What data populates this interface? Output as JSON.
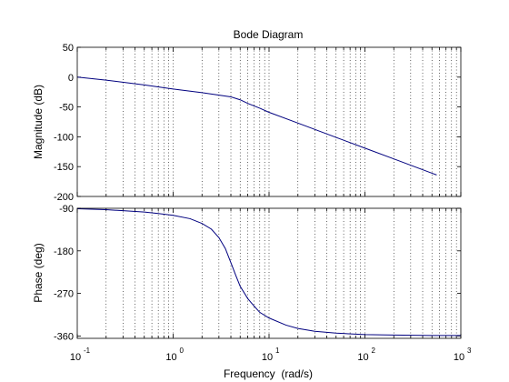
{
  "chart_data": [
    {
      "type": "line",
      "title": "Bode Diagram",
      "ylabel": "Magnitude (dB)",
      "xlabel": "",
      "xscale": "log",
      "xlim": [
        0.1,
        1000
      ],
      "ylim": [
        -200,
        50
      ],
      "yticks": [
        50,
        0,
        -50,
        -100,
        -150,
        -200
      ],
      "grid": "x-minor-dotted",
      "series": [
        {
          "x": [
            0.1,
            0.2,
            0.5,
            1,
            2,
            4,
            5,
            6,
            8,
            10,
            20,
            50,
            100,
            200,
            500,
            560
          ],
          "values": [
            0,
            -5,
            -13,
            -20,
            -26,
            -33,
            -38,
            -44,
            -52,
            -59,
            -77,
            -101,
            -119,
            -137,
            -161,
            -164
          ]
        }
      ]
    },
    {
      "type": "line",
      "title": "",
      "ylabel": "Phase (deg)",
      "xlabel": "Frequency  (rad/s)",
      "xscale": "log",
      "xlim": [
        0.1,
        1000
      ],
      "xticks": [
        "10",
        "10",
        "10",
        "10",
        "10"
      ],
      "xtick_exponents": [
        "-1",
        "0",
        "1",
        "2",
        "3"
      ],
      "ylim": [
        -365,
        -90
      ],
      "yticks": [
        -90,
        -180,
        -270,
        -360
      ],
      "grid": "x-minor-dotted",
      "series": [
        {
          "x": [
            0.1,
            0.2,
            0.3,
            0.5,
            0.7,
            1,
            1.5,
            2,
            2.5,
            3,
            3.5,
            4,
            4.5,
            5,
            6,
            7,
            8,
            10,
            15,
            20,
            30,
            50,
            100,
            200,
            500,
            1000
          ],
          "values": [
            -91,
            -93,
            -95,
            -98,
            -101,
            -105,
            -112,
            -122,
            -134,
            -152,
            -175,
            -205,
            -232,
            -255,
            -281,
            -297,
            -310,
            -322,
            -337,
            -344,
            -350,
            -354,
            -357,
            -358,
            -359,
            -359
          ]
        }
      ]
    }
  ],
  "colors": {
    "series": "#00007f",
    "axes": "#000000",
    "grid": "#000000"
  }
}
